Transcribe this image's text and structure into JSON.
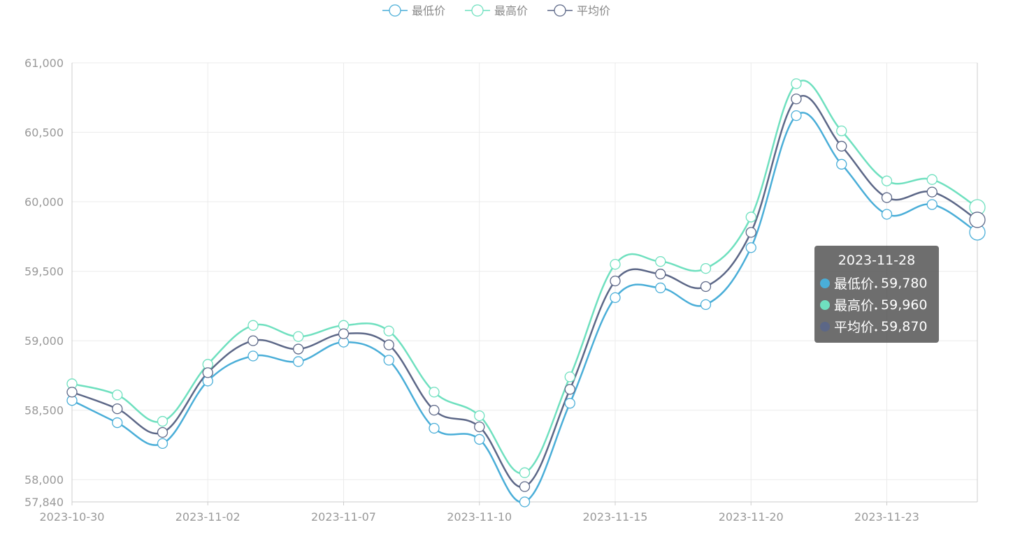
{
  "chart_data": {
    "type": "line",
    "categories": [
      "2023-10-30",
      null,
      null,
      "2023-11-02",
      null,
      null,
      "2023-11-07",
      null,
      null,
      "2023-11-10",
      null,
      null,
      "2023-11-15",
      null,
      null,
      "2023-11-20",
      null,
      null,
      "2023-11-23",
      null,
      null
    ],
    "series": [
      {
        "name": "最低价",
        "color": "#4aaed8",
        "values": [
          58570,
          58410,
          58260,
          58710,
          58890,
          58850,
          58990,
          58860,
          58370,
          58290,
          57840,
          58550,
          59310,
          59380,
          59260,
          59670,
          60620,
          60270,
          59910,
          59980,
          59780
        ]
      },
      {
        "name": "最高价",
        "color": "#6fe0bf",
        "values": [
          58690,
          58610,
          58420,
          58830,
          59110,
          59030,
          59110,
          59070,
          58630,
          58460,
          58050,
          58740,
          59550,
          59570,
          59520,
          59890,
          60850,
          60510,
          60150,
          60160,
          59960
        ]
      },
      {
        "name": "平均价",
        "color": "#5c6787",
        "values": [
          58630,
          58510,
          58340,
          58770,
          59000,
          58940,
          59050,
          58970,
          58500,
          58380,
          57950,
          58650,
          59430,
          59480,
          59390,
          59780,
          60740,
          60400,
          60030,
          60070,
          59870
        ]
      }
    ],
    "ylim": [
      57840,
      61000
    ],
    "yticks": [
      {
        "value": 57840,
        "label": "57,840"
      },
      {
        "value": 58000,
        "label": "58,000"
      },
      {
        "value": 58500,
        "label": "58,500"
      },
      {
        "value": 59000,
        "label": "59,000"
      },
      {
        "value": 59500,
        "label": "59,500"
      },
      {
        "value": 60000,
        "label": "60,000"
      },
      {
        "value": 60500,
        "label": "60,500"
      },
      {
        "value": 61000,
        "label": "61,000"
      }
    ],
    "grid": true,
    "legend": "top",
    "tooltip": {
      "title": "2023-11-28",
      "value_labels": [
        "59,780",
        "59,960",
        "59,870"
      ]
    }
  }
}
